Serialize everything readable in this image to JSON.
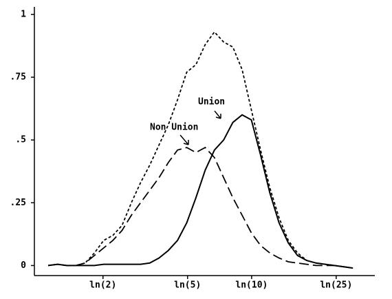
{
  "chart_data": {
    "type": "line",
    "x": [
      0.1,
      0.2,
      0.3,
      0.4,
      0.5,
      0.6,
      0.7,
      0.8,
      0.9,
      1.0,
      1.1,
      1.2,
      1.3,
      1.4,
      1.5,
      1.6,
      1.7,
      1.8,
      1.9,
      2.0,
      2.1,
      2.2,
      2.3,
      2.4,
      2.5,
      2.6,
      2.7,
      2.8,
      2.9,
      3.0,
      3.1,
      3.2,
      3.3,
      3.4
    ],
    "series": [
      {
        "color": "#000000",
        "style": "dotted",
        "values": [
          0,
          0.005,
          0,
          0,
          0.01,
          0.05,
          0.1,
          0.12,
          0.16,
          0.25,
          0.33,
          0.4,
          0.48,
          0.56,
          0.66,
          0.77,
          0.8,
          0.88,
          0.93,
          0.89,
          0.87,
          0.78,
          0.62,
          0.46,
          0.31,
          0.19,
          0.1,
          0.05,
          0.02,
          0.01,
          0.005,
          0,
          -0.005,
          -0.01
        ]
      },
      {
        "name": "Non Union",
        "color": "#000000",
        "style": "dashed",
        "values": [
          0,
          0.005,
          0,
          0,
          0.01,
          0.04,
          0.07,
          0.1,
          0.14,
          0.2,
          0.25,
          0.3,
          0.35,
          0.41,
          0.46,
          0.47,
          0.45,
          0.47,
          0.43,
          0.35,
          0.27,
          0.2,
          0.13,
          0.08,
          0.05,
          0.03,
          0.015,
          0.01,
          0.005,
          0,
          0,
          0,
          -0.005,
          -0.01
        ]
      },
      {
        "name": "Union",
        "color": "#000000",
        "style": "solid",
        "values": [
          0,
          0.005,
          0,
          0,
          0,
          0,
          0.005,
          0.005,
          0.005,
          0.005,
          0.005,
          0.01,
          0.03,
          0.06,
          0.1,
          0.17,
          0.27,
          0.38,
          0.46,
          0.5,
          0.57,
          0.6,
          0.58,
          0.44,
          0.29,
          0.17,
          0.09,
          0.04,
          0.02,
          0.01,
          0.005,
          0,
          -0.005,
          -0.01
        ]
      }
    ],
    "xlim": [
      -0.05,
      3.6
    ],
    "xticks": [
      {
        "value": 0.693,
        "label": "ln(2)"
      },
      {
        "value": 1.609,
        "label": "ln(5)"
      },
      {
        "value": 2.303,
        "label": "ln(10)"
      },
      {
        "value": 3.219,
        "label": "ln(25)"
      }
    ],
    "ylim": [
      -0.04,
      1.03
    ],
    "yticks": [
      0,
      {
        "value": 0.25,
        "label": ".25"
      },
      {
        "value": 0.5,
        "label": ".5"
      },
      {
        "value": 0.75,
        "label": ".75"
      },
      1
    ]
  }
}
